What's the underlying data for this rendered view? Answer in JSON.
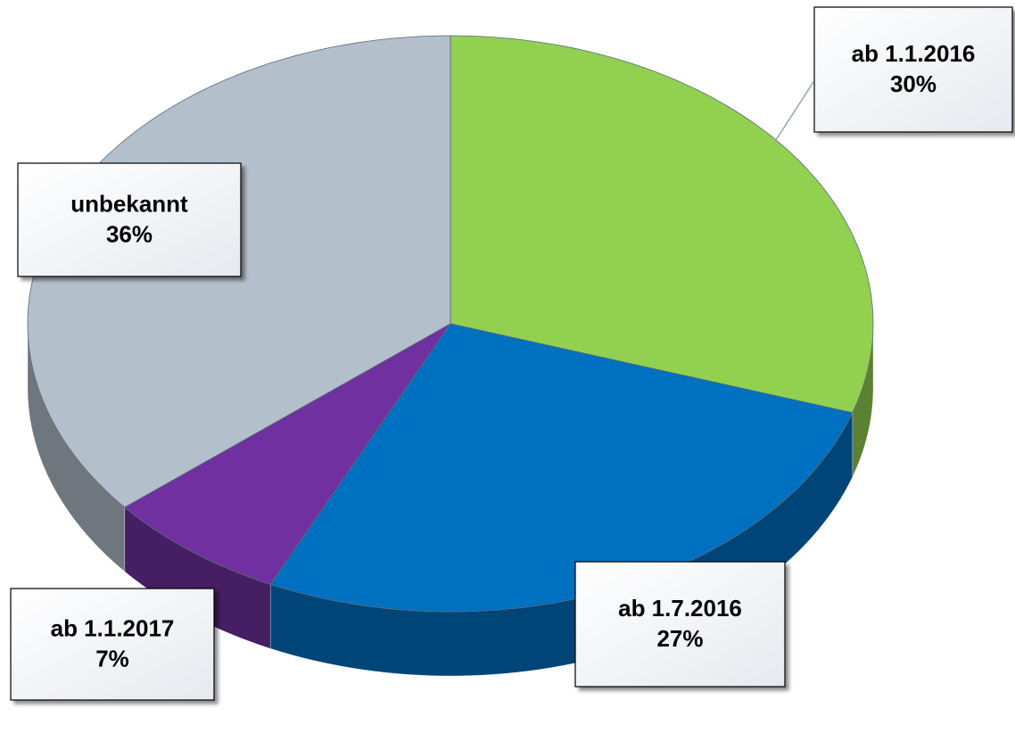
{
  "chart_data": {
    "type": "pie",
    "categories": [
      "ab 1.1.2016",
      "ab 1.7.2016",
      "ab 1.1.2017",
      "unbekannt"
    ],
    "values": [
      30,
      27,
      7,
      36
    ],
    "value_labels": [
      "30%",
      "27%",
      "7%",
      "36%"
    ],
    "colors": [
      "#92d050",
      "#0070c0",
      "#7030a0",
      "#b4bfcc"
    ]
  }
}
